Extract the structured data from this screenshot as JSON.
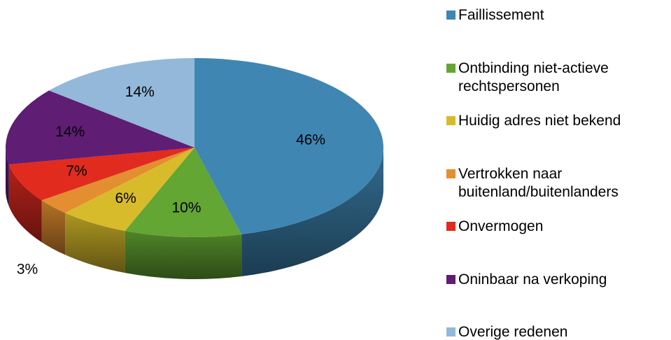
{
  "chart_data": {
    "type": "pie",
    "categories": [
      "Faillissement",
      "Ontbinding niet-actieve rechtspersonen",
      "Huidig adres niet bekend",
      "Vertrokken naar buitenland/buitenlanders",
      "Onvermogen",
      "Oninbaar na verkoping",
      "Overige redenen"
    ],
    "values": [
      46,
      10,
      6,
      3,
      7,
      14,
      14
    ],
    "value_labels": [
      "46%",
      "10%",
      "6%",
      "3%",
      "7%",
      "14%",
      "14%"
    ],
    "colors": [
      "#3f86b3",
      "#63a633",
      "#d8bb2b",
      "#e38e30",
      "#e12b1f",
      "#5f1d73",
      "#93b8da"
    ],
    "legend": "right"
  }
}
